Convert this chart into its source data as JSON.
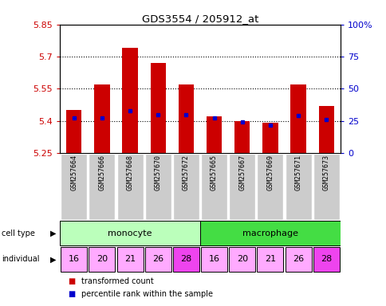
{
  "title": "GDS3554 / 205912_at",
  "samples": [
    "GSM257664",
    "GSM257666",
    "GSM257668",
    "GSM257670",
    "GSM257672",
    "GSM257665",
    "GSM257667",
    "GSM257669",
    "GSM257671",
    "GSM257673"
  ],
  "transformed_count": [
    5.45,
    5.57,
    5.74,
    5.67,
    5.57,
    5.42,
    5.4,
    5.39,
    5.57,
    5.47
  ],
  "percentile_rank": [
    27,
    27,
    33,
    30,
    30,
    27,
    24,
    22,
    29,
    26
  ],
  "ylim": [
    5.25,
    5.85
  ],
  "yticks": [
    5.25,
    5.4,
    5.55,
    5.7,
    5.85
  ],
  "ytick_labels": [
    "5.25",
    "5.4",
    "5.55",
    "5.7",
    "5.85"
  ],
  "right_yticks": [
    0,
    25,
    50,
    75,
    100
  ],
  "right_ytick_labels": [
    "0",
    "25",
    "50",
    "75",
    "100%"
  ],
  "bar_bottom": 5.25,
  "bar_color": "#cc0000",
  "dot_color": "#0000cc",
  "cell_types": [
    {
      "label": "monocyte",
      "start": 0,
      "end": 5,
      "color": "#bbffbb"
    },
    {
      "label": "macrophage",
      "start": 5,
      "end": 10,
      "color": "#44dd44"
    }
  ],
  "individuals": [
    "16",
    "20",
    "21",
    "26",
    "28",
    "16",
    "20",
    "21",
    "26",
    "28"
  ],
  "ind_colors": [
    "#ffaaff",
    "#ffaaff",
    "#ffaaff",
    "#ffaaff",
    "#ee44ee",
    "#ffaaff",
    "#ffaaff",
    "#ffaaff",
    "#ffaaff",
    "#ee44ee"
  ],
  "label_color_red": "#cc0000",
  "label_color_blue": "#0000cc",
  "legend_red_label": "transformed count",
  "legend_blue_label": "percentile rank within the sample",
  "bar_width": 0.55,
  "background_color": "#ffffff",
  "xticklabel_bg": "#cccccc"
}
